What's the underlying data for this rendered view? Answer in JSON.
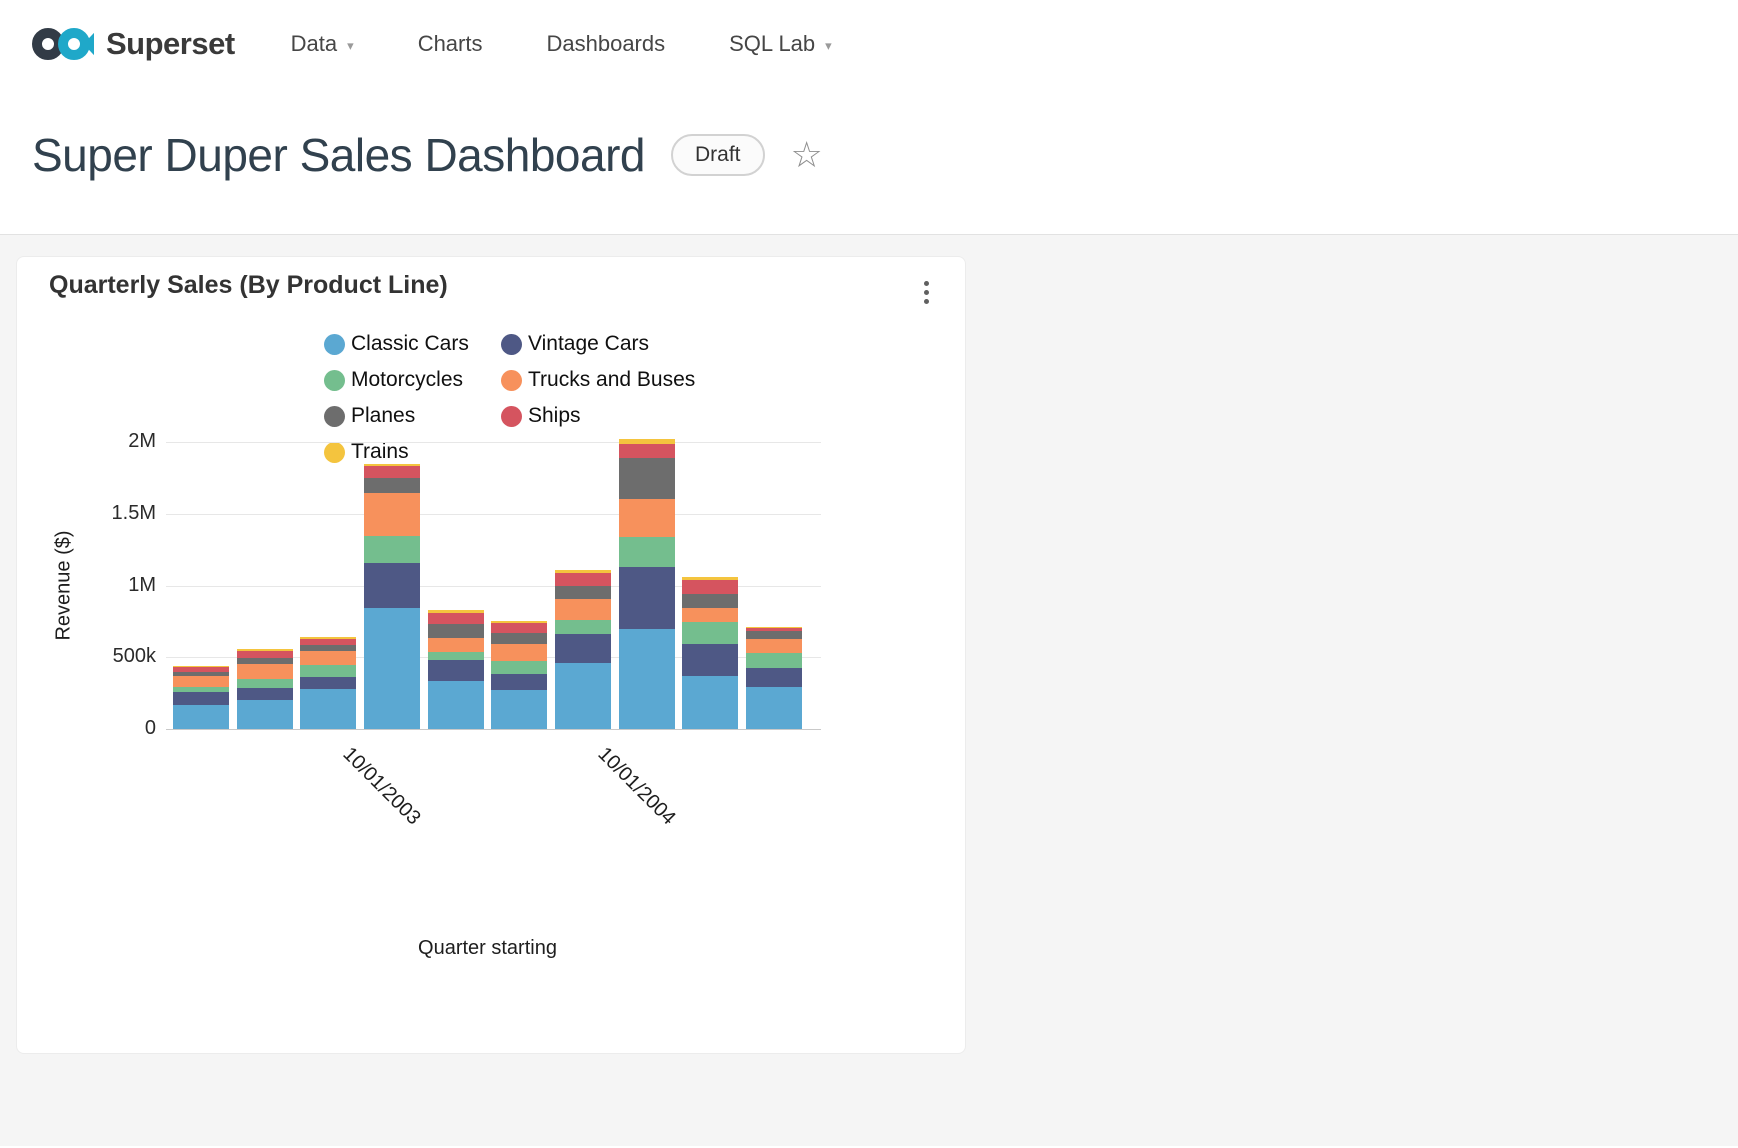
{
  "navbar": {
    "brand": "Superset",
    "items": [
      {
        "label": "Data",
        "caret": true
      },
      {
        "label": "Charts",
        "caret": false
      },
      {
        "label": "Dashboards",
        "caret": false
      },
      {
        "label": "SQL Lab",
        "caret": true
      }
    ]
  },
  "header": {
    "title": "Super Duper Sales Dashboard",
    "badge": "Draft"
  },
  "card": {
    "title": "Quarterly Sales (By Product Line)"
  },
  "chart_data": {
    "type": "bar",
    "stacked": true,
    "title": "Quarterly Sales (By Product Line)",
    "xlabel": "Quarter starting",
    "ylabel": "Revenue ($)",
    "ylim": [
      0,
      2000000
    ],
    "ytick_labels": [
      "0",
      "500k",
      "1M",
      "1.5M",
      "2M"
    ],
    "grid": true,
    "legend_position": "top",
    "categories": [
      "",
      "",
      "",
      "10/01/2003",
      "",
      "",
      "",
      "10/01/2004",
      "",
      ""
    ],
    "series": [
      {
        "name": "Classic Cars",
        "color": "#5BA8D2",
        "values": [
          170000,
          200000,
          280000,
          840000,
          335000,
          270000,
          460000,
          700000,
          370000,
          295000
        ]
      },
      {
        "name": "Vintage Cars",
        "color": "#4E5885",
        "values": [
          85000,
          85000,
          80000,
          320000,
          145000,
          115000,
          205000,
          430000,
          225000,
          130000
        ]
      },
      {
        "name": "Motorcycles",
        "color": "#74BE8E",
        "values": [
          40000,
          65000,
          85000,
          185000,
          60000,
          90000,
          95000,
          205000,
          150000,
          105000
        ]
      },
      {
        "name": "Trucks and Buses",
        "color": "#F7915C",
        "values": [
          75000,
          105000,
          100000,
          300000,
          95000,
          120000,
          145000,
          270000,
          95000,
          95000
        ]
      },
      {
        "name": "Planes",
        "color": "#6D6D6D",
        "values": [
          30000,
          40000,
          40000,
          105000,
          95000,
          75000,
          90000,
          285000,
          100000,
          55000
        ]
      },
      {
        "name": "Ships",
        "color": "#D5545F",
        "values": [
          30000,
          50000,
          45000,
          80000,
          80000,
          70000,
          95000,
          95000,
          100000,
          25000
        ]
      },
      {
        "name": "Trains",
        "color": "#F4C43E",
        "values": [
          10000,
          10000,
          10000,
          20000,
          20000,
          15000,
          20000,
          35000,
          20000,
          5000
        ]
      }
    ]
  }
}
